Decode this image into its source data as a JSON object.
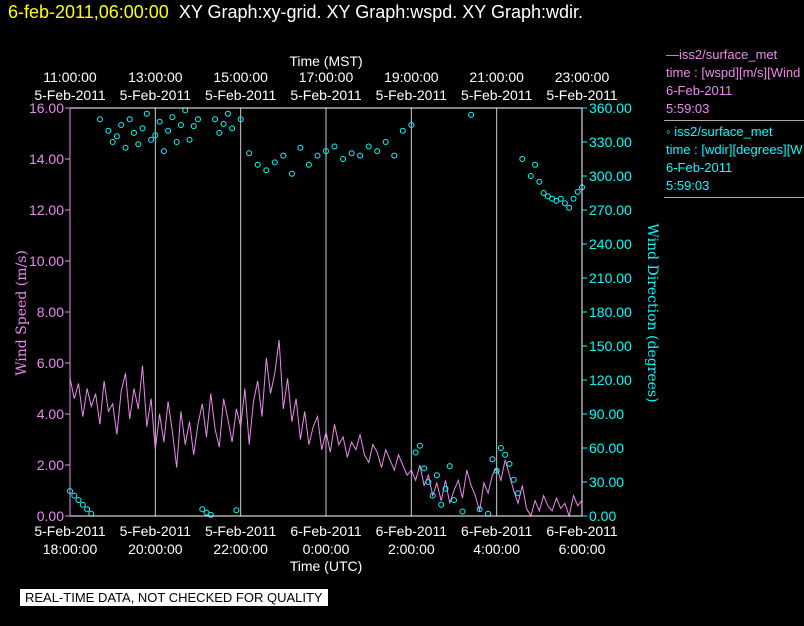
{
  "header": {
    "timestamp": "6-feb-2011,06:00:00",
    "graphs": "XY Graph:xy-grid.  XY Graph:wspd.  XY Graph:wdir."
  },
  "legend": [
    {
      "line1": "—iss2/surface_met",
      "line2": "time : [wspd][m/s][Wind",
      "line3": "6-Feb-2011",
      "line4": "5:59:03"
    },
    {
      "line1": "◦ iss2/surface_met",
      "line2": "time : [wdir][degrees][W",
      "line3": "6-Feb-2011",
      "line4": "5:59:03"
    }
  ],
  "footer": "REAL-TIME DATA, NOT CHECKED FOR QUALITY",
  "colors": {
    "speed": "#ee88ee",
    "direction": "#00ffff",
    "grid": "#cccccc",
    "axis": "#ffffff"
  },
  "chart_data": {
    "type": "line",
    "x_range_hours_utc": [
      18,
      30
    ],
    "top_axis": {
      "title": "Time (MST)",
      "ticks": [
        {
          "t": 18,
          "time": "11:00:00",
          "date": "5-Feb-2011"
        },
        {
          "t": 20,
          "time": "13:00:00",
          "date": "5-Feb-2011"
        },
        {
          "t": 22,
          "time": "15:00:00",
          "date": "5-Feb-2011"
        },
        {
          "t": 24,
          "time": "17:00:00",
          "date": "5-Feb-2011"
        },
        {
          "t": 26,
          "time": "19:00:00",
          "date": "5-Feb-2011"
        },
        {
          "t": 28,
          "time": "21:00:00",
          "date": "5-Feb-2011"
        },
        {
          "t": 30,
          "time": "23:00:00",
          "date": "5-Feb-2011"
        }
      ]
    },
    "bottom_axis": {
      "title": "Time (UTC)",
      "ticks": [
        {
          "t": 18,
          "date": "5-Feb-2011",
          "time": "18:00:00"
        },
        {
          "t": 20,
          "date": "5-Feb-2011",
          "time": "20:00:00"
        },
        {
          "t": 22,
          "date": "5-Feb-2011",
          "time": "22:00:00"
        },
        {
          "t": 24,
          "date": "6-Feb-2011",
          "time": "0:00:00"
        },
        {
          "t": 26,
          "date": "6-Feb-2011",
          "time": "2:00:00"
        },
        {
          "t": 28,
          "date": "6-Feb-2011",
          "time": "4:00:00"
        },
        {
          "t": 30,
          "date": "6-Feb-2011",
          "time": "6:00:00"
        }
      ]
    },
    "left_axis": {
      "title": "Wind Speed (m/s)",
      "range": [
        0,
        16
      ],
      "ticks": [
        {
          "v": 0,
          "label": "0.00"
        },
        {
          "v": 2,
          "label": "2.00"
        },
        {
          "v": 4,
          "label": "4.00"
        },
        {
          "v": 6,
          "label": "6.00"
        },
        {
          "v": 8,
          "label": "8.00"
        },
        {
          "v": 10,
          "label": "10.00"
        },
        {
          "v": 12,
          "label": "12.00"
        },
        {
          "v": 14,
          "label": "14.00"
        },
        {
          "v": 16,
          "label": "16.00"
        }
      ]
    },
    "right_axis": {
      "title": "Wind Direction (degrees)",
      "range": [
        0,
        360
      ],
      "ticks": [
        {
          "v": 0,
          "label": "0.00"
        },
        {
          "v": 30,
          "label": "30.00"
        },
        {
          "v": 60,
          "label": "60.00"
        },
        {
          "v": 90,
          "label": "90.00"
        },
        {
          "v": 120,
          "label": "120.00"
        },
        {
          "v": 150,
          "label": "150.00"
        },
        {
          "v": 180,
          "label": "180.00"
        },
        {
          "v": 210,
          "label": "210.00"
        },
        {
          "v": 240,
          "label": "240.00"
        },
        {
          "v": 270,
          "label": "270.00"
        },
        {
          "v": 300,
          "label": "300.00"
        },
        {
          "v": 330,
          "label": "330.00"
        },
        {
          "v": 360,
          "label": "360.00"
        }
      ]
    },
    "grid": "vertical",
    "series": [
      {
        "kind": "line",
        "axis": "left",
        "x": [
          18.0,
          18.1,
          18.2,
          18.3,
          18.4,
          18.5,
          18.6,
          18.7,
          18.8,
          18.9,
          19.0,
          19.1,
          19.2,
          19.3,
          19.4,
          19.5,
          19.6,
          19.7,
          19.8,
          19.9,
          20.0,
          20.1,
          20.2,
          20.3,
          20.4,
          20.5,
          20.6,
          20.7,
          20.8,
          20.9,
          21.0,
          21.1,
          21.2,
          21.3,
          21.4,
          21.5,
          21.6,
          21.7,
          21.8,
          21.9,
          22.0,
          22.1,
          22.2,
          22.3,
          22.4,
          22.5,
          22.6,
          22.7,
          22.8,
          22.9,
          23.0,
          23.1,
          23.2,
          23.3,
          23.4,
          23.5,
          23.6,
          23.7,
          23.8,
          23.9,
          24.0,
          24.1,
          24.2,
          24.3,
          24.4,
          24.5,
          24.6,
          24.7,
          24.8,
          24.9,
          25.0,
          25.1,
          25.2,
          25.3,
          25.4,
          25.5,
          25.6,
          25.7,
          25.8,
          25.9,
          26.0,
          26.1,
          26.2,
          26.3,
          26.4,
          26.5,
          26.6,
          26.7,
          26.8,
          26.9,
          27.0,
          27.1,
          27.2,
          27.3,
          27.4,
          27.5,
          27.6,
          27.7,
          27.8,
          27.9,
          28.0,
          28.1,
          28.2,
          28.3,
          28.4,
          28.5,
          28.6,
          28.7,
          28.8,
          28.9,
          29.0,
          29.1,
          29.2,
          29.3,
          29.4,
          29.5,
          29.6,
          29.7,
          29.8,
          29.9,
          30.0
        ],
        "y": [
          5.4,
          4.6,
          5.2,
          3.9,
          5.0,
          4.3,
          4.8,
          3.6,
          5.3,
          4.1,
          4.4,
          3.2,
          4.9,
          5.6,
          3.8,
          5.0,
          4.2,
          5.9,
          3.5,
          4.6,
          2.6,
          4.0,
          2.9,
          4.5,
          3.3,
          1.9,
          4.1,
          2.8,
          3.7,
          2.4,
          3.6,
          4.4,
          3.1,
          4.8,
          3.4,
          2.7,
          4.6,
          3.8,
          2.9,
          4.2,
          3.5,
          5.0,
          2.8,
          4.5,
          5.3,
          3.9,
          6.2,
          4.8,
          5.6,
          6.9,
          4.2,
          5.4,
          3.7,
          4.6,
          3.0,
          4.1,
          2.8,
          3.5,
          3.9,
          2.6,
          3.3,
          2.5,
          3.6,
          2.8,
          3.1,
          2.3,
          2.9,
          2.6,
          3.2,
          2.4,
          2.1,
          2.8,
          2.5,
          1.9,
          2.6,
          2.2,
          1.8,
          2.4,
          2.0,
          1.6,
          1.8,
          1.4,
          2.0,
          1.2,
          1.6,
          0.8,
          1.3,
          0.6,
          1.4,
          0.5,
          1.0,
          1.4,
          0.7,
          1.8,
          1.2,
          0.8,
          0.2,
          1.3,
          0.9,
          1.6,
          1.9,
          1.4,
          2.2,
          1.6,
          1.0,
          0.5,
          1.2,
          0.3,
          0.0,
          0.6,
          0.2,
          0.8,
          0.4,
          0.2,
          0.7,
          0.3,
          0.5,
          0.0,
          0.8,
          0.4,
          0.6
        ]
      },
      {
        "kind": "scatter",
        "axis": "right",
        "x": [
          18.0,
          18.1,
          18.2,
          18.3,
          18.4,
          18.5,
          18.7,
          18.9,
          19.0,
          19.1,
          19.2,
          19.3,
          19.4,
          19.5,
          19.6,
          19.7,
          19.8,
          19.9,
          20.0,
          20.1,
          20.2,
          20.3,
          20.4,
          20.5,
          20.6,
          20.7,
          20.8,
          20.9,
          21.0,
          21.1,
          21.2,
          21.3,
          21.4,
          21.5,
          21.6,
          21.7,
          21.8,
          21.9,
          22.0,
          22.2,
          22.4,
          22.6,
          22.8,
          23.0,
          23.2,
          23.4,
          23.6,
          23.8,
          24.0,
          24.2,
          24.4,
          24.6,
          24.8,
          25.0,
          25.2,
          25.4,
          25.6,
          25.8,
          26.0,
          26.1,
          26.2,
          26.3,
          26.4,
          26.5,
          26.6,
          26.7,
          26.8,
          26.9,
          27.0,
          27.2,
          27.4,
          27.6,
          27.8,
          27.9,
          28.0,
          28.1,
          28.2,
          28.3,
          28.4,
          28.5,
          28.6,
          28.8,
          28.9,
          29.0,
          29.1,
          29.2,
          29.3,
          29.4,
          29.5,
          29.6,
          29.7,
          29.8,
          29.9,
          30.0
        ],
        "y": [
          22,
          18,
          14,
          10,
          6,
          2,
          350,
          340,
          330,
          335,
          345,
          325,
          350,
          338,
          328,
          342,
          355,
          332,
          336,
          348,
          322,
          340,
          352,
          330,
          345,
          358,
          332,
          344,
          350,
          6,
          3,
          1,
          350,
          338,
          346,
          355,
          342,
          5,
          350,
          320,
          310,
          305,
          312,
          318,
          302,
          325,
          310,
          318,
          322,
          326,
          315,
          320,
          318,
          326,
          322,
          330,
          318,
          340,
          345,
          56,
          62,
          42,
          30,
          18,
          36,
          10,
          24,
          44,
          14,
          4,
          354,
          6,
          2,
          50,
          40,
          60,
          54,
          46,
          32,
          20,
          315,
          300,
          310,
          295,
          285,
          282,
          280,
          278,
          280,
          276,
          272,
          280,
          286,
          290
        ]
      }
    ]
  }
}
